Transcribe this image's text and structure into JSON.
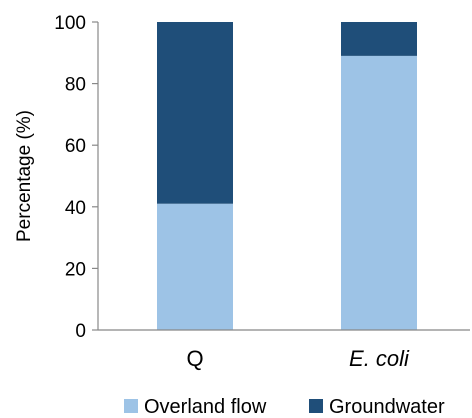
{
  "chart_data": {
    "type": "bar",
    "stacked": true,
    "categories": [
      "Q",
      "E. coli"
    ],
    "category_italic": [
      false,
      true
    ],
    "series": [
      {
        "name": "Overland flow",
        "values": [
          41,
          89
        ],
        "color": "#9dc3e6"
      },
      {
        "name": "Groundwater",
        "values": [
          59,
          11
        ],
        "color": "#1f4e79"
      }
    ],
    "ylabel": "Percentage (%)",
    "xlabel": "",
    "ylim": [
      0,
      100
    ],
    "yticks": [
      "0",
      "20",
      "40",
      "60",
      "80",
      "100"
    ],
    "grid": false,
    "legend_position": "bottom"
  }
}
